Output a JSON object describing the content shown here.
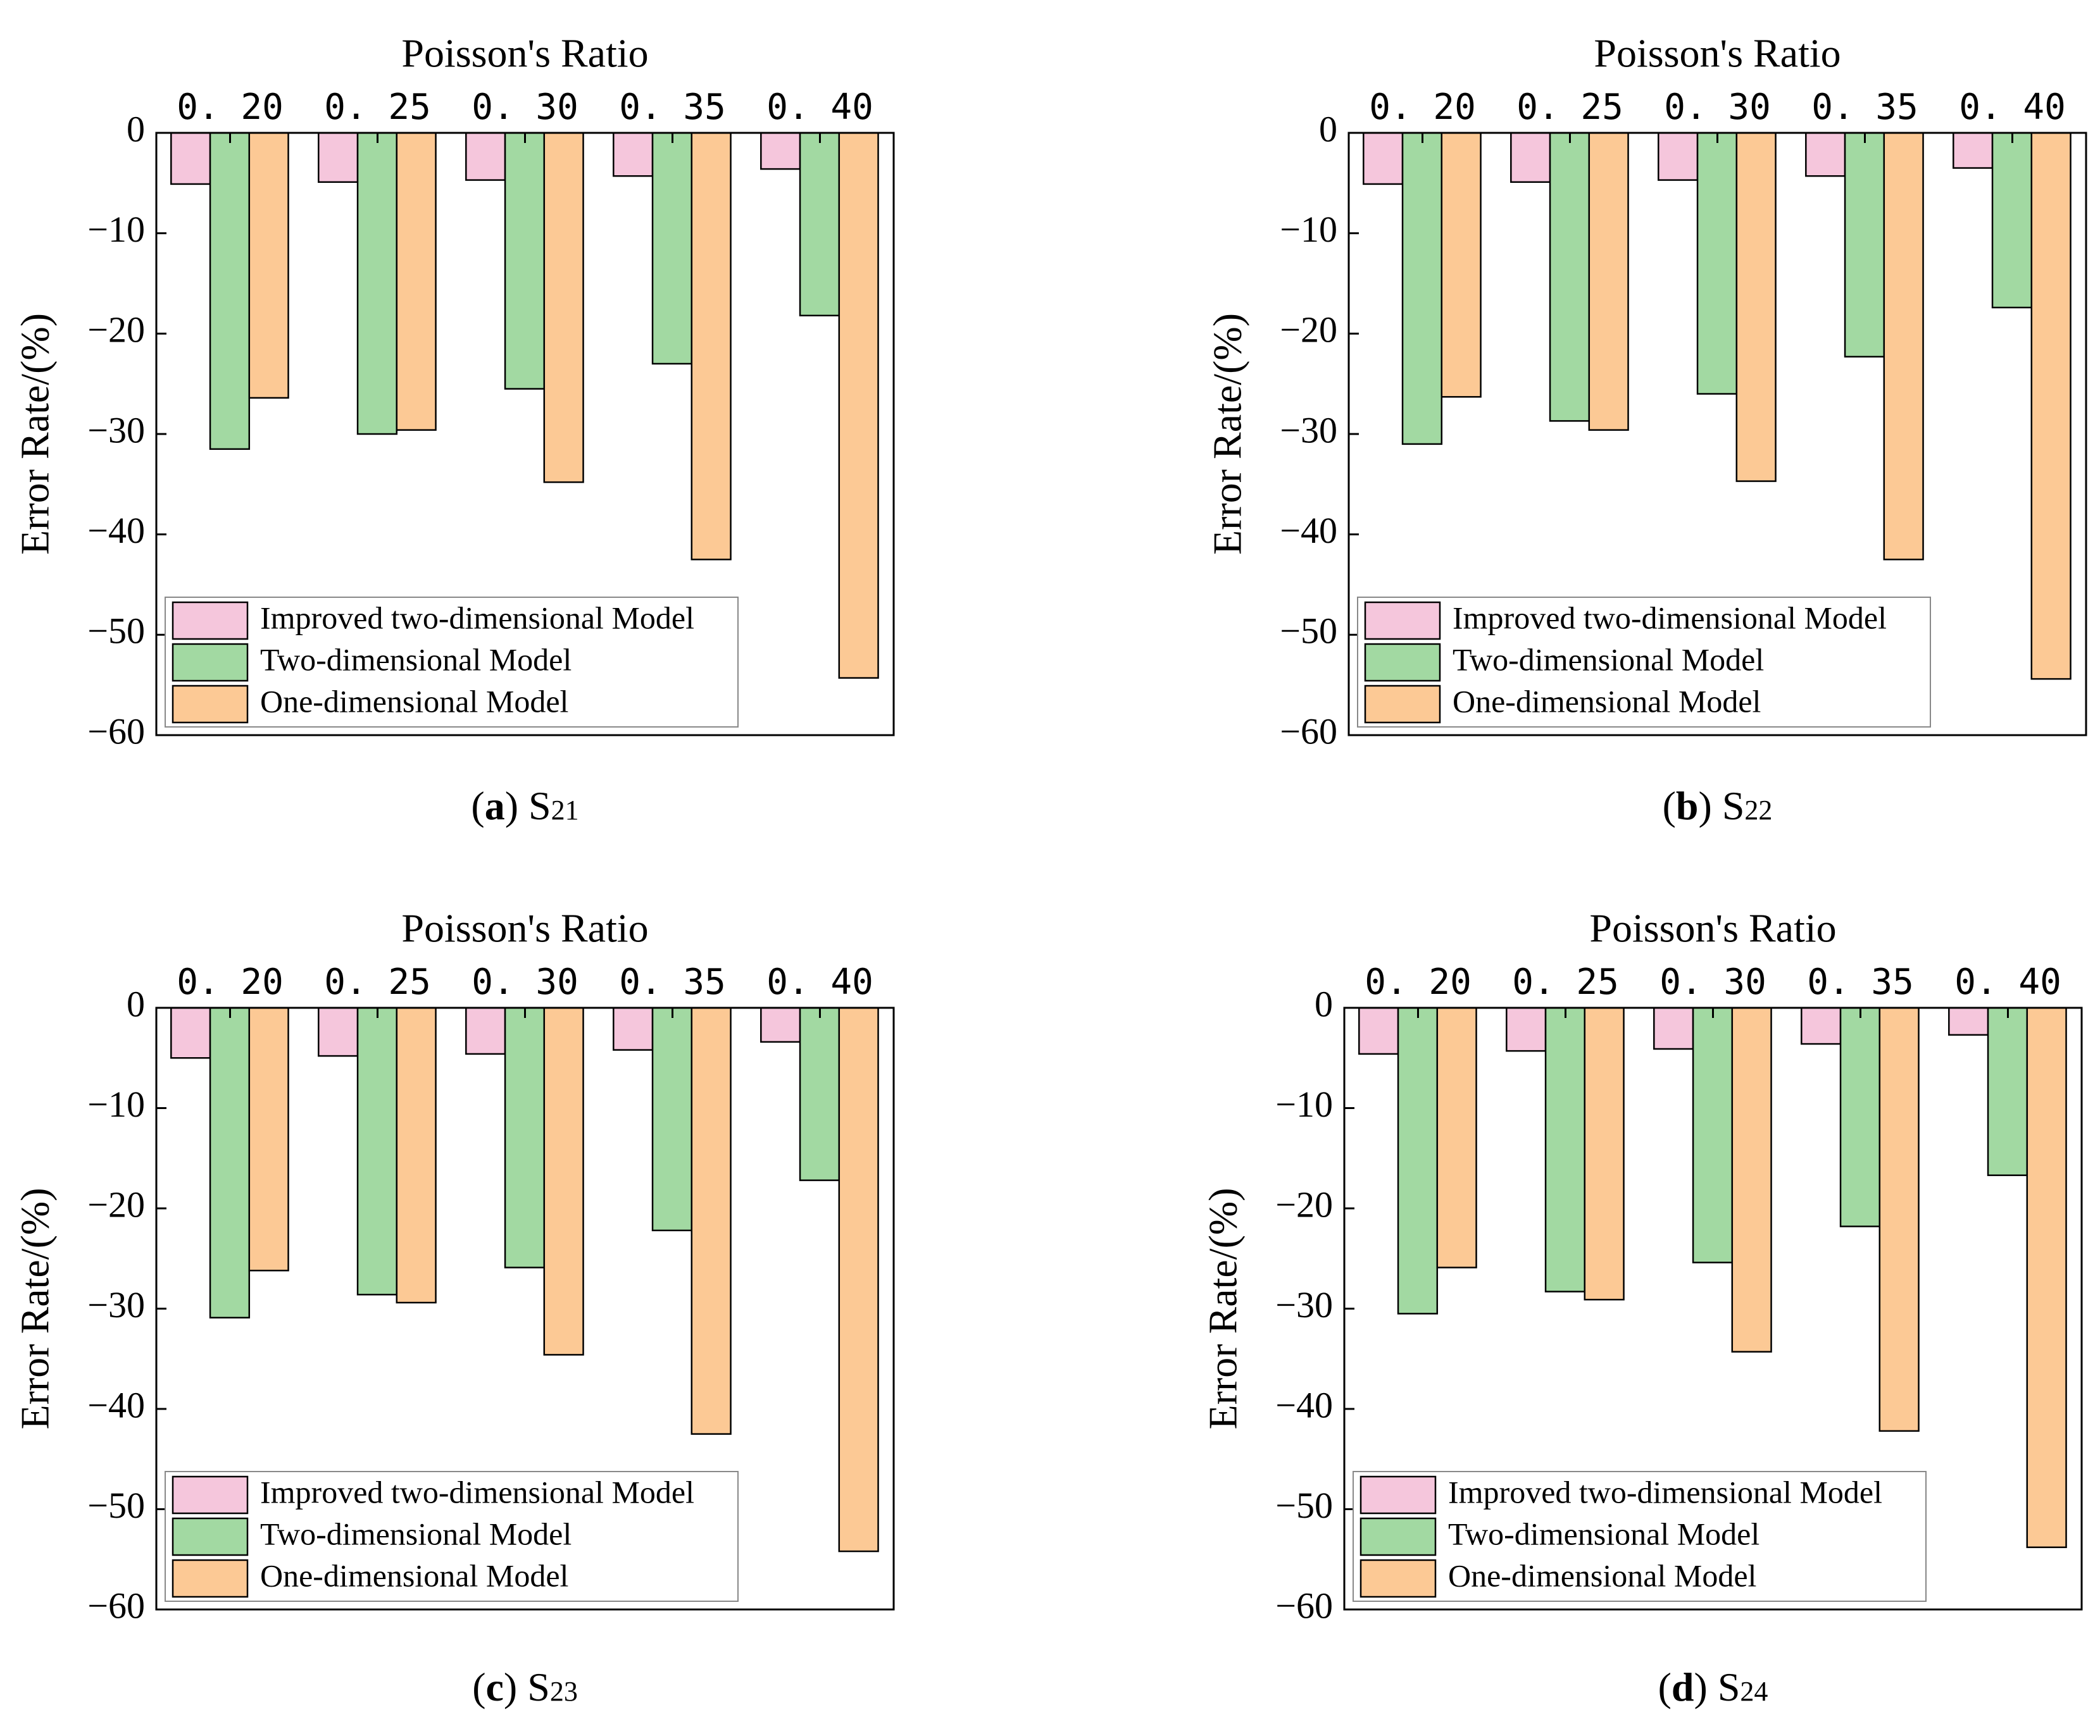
{
  "chart_data": [
    {
      "type": "bar",
      "title": "Poisson's Ratio",
      "ylabel": "Error Rate/(%)",
      "caption_letter": "a",
      "caption_label": "S",
      "caption_sub": "21",
      "categories": [
        "0. 20",
        "0. 25",
        "0. 30",
        "0. 35",
        "0. 40"
      ],
      "ylim": [
        -60,
        0
      ],
      "yticks": [
        "0",
        "−10",
        "−20",
        "−30",
        "−40",
        "−50",
        "−60"
      ],
      "legend_position": "bottom-left",
      "series": [
        {
          "name": "Improved two-dimensional Model",
          "values": [
            -5.1,
            -4.9,
            -4.7,
            -4.3,
            -3.6
          ]
        },
        {
          "name": "Two-dimensional Model",
          "values": [
            -31.5,
            -30.0,
            -25.5,
            -23.0,
            -18.2
          ]
        },
        {
          "name": "One-dimensional Model",
          "values": [
            -26.4,
            -29.6,
            -34.8,
            -42.5,
            -54.3
          ]
        }
      ]
    },
    {
      "type": "bar",
      "title": "Poisson's Ratio",
      "ylabel": "Error Rate/(%)",
      "caption_letter": "b",
      "caption_label": "S",
      "caption_sub": "22",
      "categories": [
        "0. 20",
        "0. 25",
        "0. 30",
        "0. 35",
        "0. 40"
      ],
      "ylim": [
        -60,
        0
      ],
      "yticks": [
        "0",
        "−10",
        "−20",
        "−30",
        "−40",
        "−50",
        "−60"
      ],
      "legend_position": "bottom-left",
      "series": [
        {
          "name": "Improved two-dimensional Model",
          "values": [
            -5.1,
            -4.9,
            -4.7,
            -4.3,
            -3.5
          ]
        },
        {
          "name": "Two-dimensional Model",
          "values": [
            -31.0,
            -28.7,
            -26.0,
            -22.3,
            -17.4
          ]
        },
        {
          "name": "One-dimensional Model",
          "values": [
            -26.3,
            -29.6,
            -34.7,
            -42.5,
            -54.4
          ]
        }
      ]
    },
    {
      "type": "bar",
      "title": "Poisson's Ratio",
      "ylabel": "Error Rate/(%)",
      "caption_letter": "c",
      "caption_label": "S",
      "caption_sub": "23",
      "categories": [
        "0. 20",
        "0. 25",
        "0. 30",
        "0. 35",
        "0. 40"
      ],
      "ylim": [
        -60,
        0
      ],
      "yticks": [
        "0",
        "−10",
        "−20",
        "−30",
        "−40",
        "−50",
        "−60"
      ],
      "legend_position": "bottom-left",
      "series": [
        {
          "name": "Improved two-dimensional Model",
          "values": [
            -5.0,
            -4.8,
            -4.6,
            -4.2,
            -3.4
          ]
        },
        {
          "name": "Two-dimensional Model",
          "values": [
            -30.9,
            -28.6,
            -25.9,
            -22.2,
            -17.2
          ]
        },
        {
          "name": "One-dimensional Model",
          "values": [
            -26.2,
            -29.4,
            -34.6,
            -42.5,
            -54.2
          ]
        }
      ]
    },
    {
      "type": "bar",
      "title": "Poisson's Ratio",
      "ylabel": "Error Rate/(%)",
      "caption_letter": "d",
      "caption_label": "S",
      "caption_sub": "24",
      "categories": [
        "0. 20",
        "0. 25",
        "0. 30",
        "0. 35",
        "0. 40"
      ],
      "ylim": [
        -60,
        0
      ],
      "yticks": [
        "0",
        "−10",
        "−20",
        "−30",
        "−40",
        "−50",
        "−60"
      ],
      "legend_position": "bottom-left",
      "series": [
        {
          "name": "Improved two-dimensional Model",
          "values": [
            -4.6,
            -4.3,
            -4.1,
            -3.6,
            -2.7
          ]
        },
        {
          "name": "Two-dimensional Model",
          "values": [
            -30.5,
            -28.3,
            -25.4,
            -21.8,
            -16.7
          ]
        },
        {
          "name": "One-dimensional Model",
          "values": [
            -25.9,
            -29.1,
            -34.3,
            -42.2,
            -53.8
          ]
        }
      ]
    }
  ],
  "colors": {
    "improved": "#f5c6dc",
    "two_dim": "#a2d9a2",
    "one_dim": "#fcc995",
    "edge": "#000000"
  }
}
